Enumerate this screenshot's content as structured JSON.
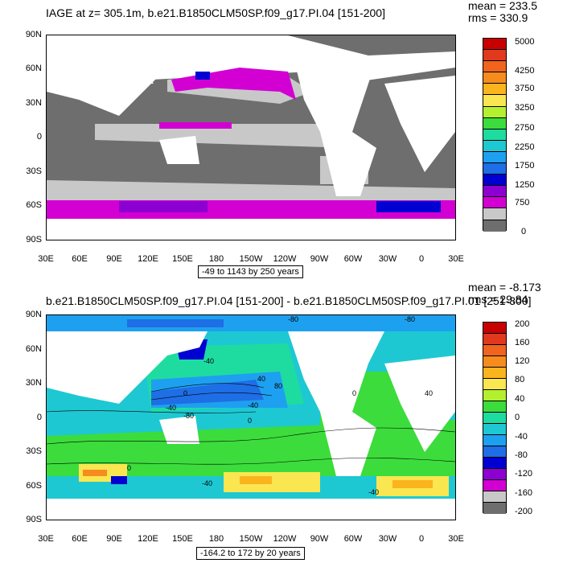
{
  "top_panel": {
    "title": "IAGE at z= 305.1m, b.e21.B1850CLM50SP.f09_g17.PI.04 [151-200]",
    "mean": "mean = 233.5",
    "rms": "rms = 330.9",
    "range": "-49 to 1143 by 250 years",
    "colorbar": {
      "colors": [
        "#c80000",
        "#e1391e",
        "#f0641e",
        "#f78c1e",
        "#fab41e",
        "#fae650",
        "#b4f030",
        "#3cdc3c",
        "#1edca0",
        "#1ec8d2",
        "#1ea0f0",
        "#1e6ee6",
        "#0000d2",
        "#8c00d2",
        "#d200d2",
        "#c8c8c8",
        "#6e6e6e"
      ],
      "labels": [
        "5000",
        "4250",
        "3750",
        "3250",
        "2750",
        "2250",
        "1750",
        "1250",
        "750",
        "0"
      ]
    }
  },
  "bottom_panel": {
    "title": "b.e21.B1850CLM50SP.f09_g17.PI.04 [151-200] - b.e21.B1850CLM50SP.f09_g17.PI.01 [251-300]",
    "mean": "mean = -8.173",
    "rms": "rms = 29.84",
    "range": "-164.2 to 172 by 20 years",
    "colorbar": {
      "colors": [
        "#c80000",
        "#e1391e",
        "#f0641e",
        "#f78c1e",
        "#fab41e",
        "#fae650",
        "#b4f030",
        "#3cdc3c",
        "#1edca0",
        "#1ec8d2",
        "#1ea0f0",
        "#1e6ee6",
        "#0000d2",
        "#8c00d2",
        "#d200d2",
        "#c8c8c8",
        "#6e6e6e"
      ],
      "labels": [
        "200",
        "160",
        "120",
        "80",
        "40",
        "0",
        "-40",
        "-80",
        "-120",
        "-160",
        "-200"
      ],
      "contour_labels": [
        "-80",
        "-80",
        "-40",
        "40",
        "80",
        "-40",
        "0",
        "-40",
        "0",
        "-80",
        "0",
        "0",
        "40",
        "-40",
        "-40"
      ]
    }
  },
  "axes": {
    "lat_labels": [
      "90N",
      "60N",
      "30N",
      "0",
      "30S",
      "60S",
      "90S"
    ],
    "lon_labels": [
      "30E",
      "60E",
      "90E",
      "120E",
      "150E",
      "180",
      "150W",
      "120W",
      "90W",
      "60W",
      "30W",
      "0",
      "30E"
    ]
  }
}
